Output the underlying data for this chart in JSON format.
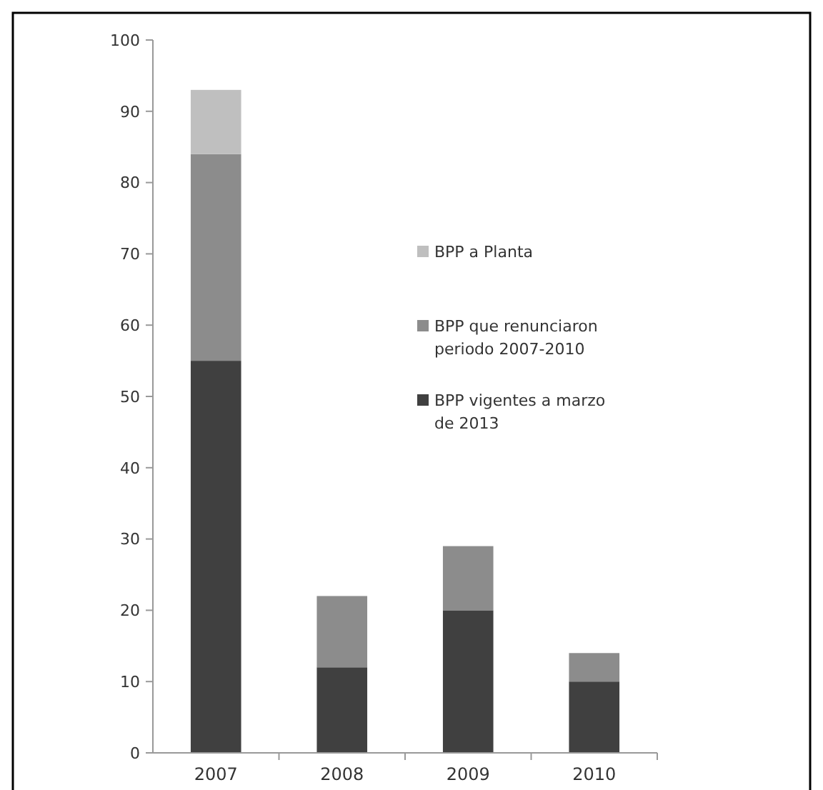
{
  "chart_data": {
    "type": "bar",
    "stacked": true,
    "categories": [
      "2007",
      "2008",
      "2009",
      "2010"
    ],
    "series": [
      {
        "name": "BPP vigentes a marzo de 2013",
        "color": "#404040",
        "values": [
          55,
          12,
          20,
          10
        ]
      },
      {
        "name": "BPP que renunciaron periodo 2007-2010",
        "color": "#8c8c8c",
        "values": [
          29,
          10,
          9,
          4
        ]
      },
      {
        "name": "BPP a Planta",
        "color": "#bfbfbf",
        "values": [
          9,
          0,
          0,
          0
        ]
      }
    ],
    "ylim": [
      0,
      100
    ],
    "yticks": [
      0,
      10,
      20,
      30,
      40,
      50,
      60,
      70,
      80,
      90,
      100
    ],
    "grid": false,
    "legend": "right"
  }
}
